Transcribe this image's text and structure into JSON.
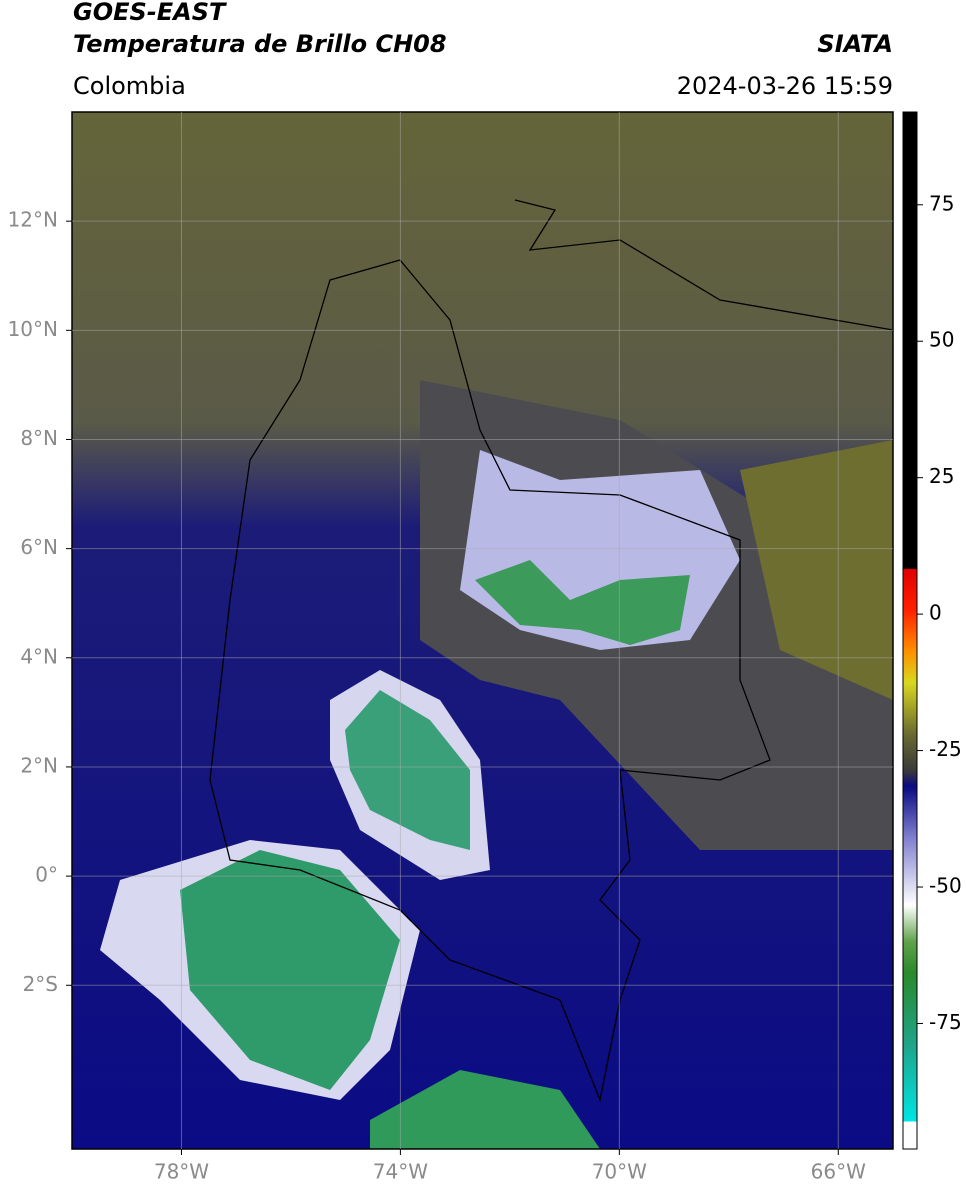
{
  "header": {
    "title": "GOES-EAST",
    "subtitle": "Temperatura de Brillo CH08",
    "source": "SIATA",
    "region": "Colombia",
    "datetime": "2024-03-26 15:59"
  },
  "map": {
    "xlim": [
      -80,
      -65
    ],
    "ylim": [
      -5,
      14
    ],
    "xticks": [
      {
        "value": -78,
        "label": "78°W"
      },
      {
        "value": -74,
        "label": "74°W"
      },
      {
        "value": -70,
        "label": "70°W"
      },
      {
        "value": -66,
        "label": "66°W"
      }
    ],
    "yticks": [
      {
        "value": 12,
        "label": "12°N"
      },
      {
        "value": 10,
        "label": "10°N"
      },
      {
        "value": 8,
        "label": "8°N"
      },
      {
        "value": 6,
        "label": "6°N"
      },
      {
        "value": 4,
        "label": "4°N"
      },
      {
        "value": 2,
        "label": "2°N"
      },
      {
        "value": 0,
        "label": "0°"
      },
      {
        "value": -2,
        "label": "2°S"
      }
    ],
    "grid": true
  },
  "colorbar": {
    "lim": [
      -98,
      92
    ],
    "ticks": [
      75,
      50,
      25,
      0,
      -25,
      -50,
      -75
    ]
  }
}
